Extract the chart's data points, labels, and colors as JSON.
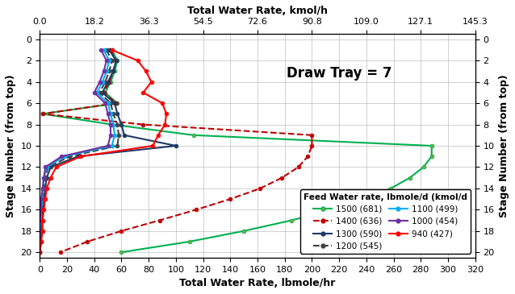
{
  "title_top": "Total Water Rate, kmol/h",
  "xlabel": "Total Water Rate, lbmole/hr",
  "ylabel_left": "Stage Number (from top)",
  "ylabel_right": "Stage Number (from top)",
  "annotation": "Draw Tray = 7",
  "xlim": [
    0,
    320
  ],
  "ylim": [
    20.5,
    -0.5
  ],
  "xticks_bottom": [
    0,
    20,
    40,
    60,
    80,
    100,
    120,
    140,
    160,
    180,
    200,
    220,
    240,
    260,
    280,
    300,
    320
  ],
  "xticks_top_values": [
    0.0,
    18.2,
    36.3,
    54.5,
    72.6,
    90.8,
    109.0,
    127.1,
    145.3
  ],
  "yticks": [
    0,
    2,
    4,
    6,
    8,
    10,
    12,
    14,
    16,
    18,
    20
  ],
  "series": [
    {
      "label": "1500 (681)",
      "color": "#00b050",
      "linestyle": "-",
      "linewidth": 1.5,
      "marker": "o",
      "markersize": 3.5,
      "markerfacecolor": "#70ad47",
      "stages": [
        1,
        2,
        3,
        4,
        5,
        6,
        7,
        8,
        9,
        10,
        11,
        12,
        13,
        14,
        15,
        16,
        17,
        18,
        19,
        20
      ],
      "water_rate": [
        53,
        57,
        55,
        52,
        48,
        57,
        2,
        53,
        113,
        288,
        288,
        282,
        272,
        258,
        240,
        215,
        185,
        150,
        110,
        60
      ]
    },
    {
      "label": "1400 (636)",
      "color": "#c00000",
      "linestyle": "--",
      "linewidth": 1.5,
      "marker": "o",
      "markersize": 3.5,
      "markerfacecolor": "#c00000",
      "stages": [
        1,
        2,
        3,
        4,
        5,
        6,
        7,
        8,
        9,
        10,
        11,
        12,
        13,
        14,
        15,
        16,
        17,
        18,
        19,
        20
      ],
      "water_rate": [
        52,
        56,
        54,
        51,
        47,
        56,
        2,
        76,
        200,
        200,
        197,
        190,
        178,
        162,
        140,
        115,
        88,
        60,
        35,
        15
      ]
    },
    {
      "label": "1300 (590)",
      "color": "#1f3864",
      "linestyle": "-",
      "linewidth": 1.5,
      "marker": "o",
      "markersize": 3.5,
      "markerfacecolor": "#1f3864",
      "stages": [
        1,
        2,
        3,
        4,
        5,
        6,
        7,
        8,
        9,
        10,
        11,
        12,
        13,
        14,
        15,
        16,
        17,
        18,
        19,
        20
      ],
      "water_rate": [
        51,
        56,
        54,
        50,
        46,
        55,
        57,
        60,
        62,
        100,
        28,
        8,
        5,
        4,
        3,
        2,
        2,
        1,
        1,
        0
      ]
    },
    {
      "label": "1200 (545)",
      "color": "#404040",
      "linestyle": "--",
      "linewidth": 1.5,
      "marker": "o",
      "markersize": 3.5,
      "markerfacecolor": "#404040",
      "stages": [
        1,
        2,
        3,
        4,
        5,
        6,
        7,
        8,
        9,
        10,
        11,
        12,
        13,
        14,
        15,
        16,
        17,
        18,
        19,
        20
      ],
      "water_rate": [
        49,
        53,
        51,
        48,
        44,
        52,
        54,
        57,
        58,
        57,
        22,
        6,
        4,
        3,
        2,
        2,
        1,
        1,
        0,
        0
      ]
    },
    {
      "label": "1100 (499)",
      "color": "#00b0f0",
      "linestyle": "-",
      "linewidth": 1.5,
      "marker": "o",
      "markersize": 3.5,
      "markerfacecolor": "#00b0f0",
      "stages": [
        1,
        2,
        3,
        4,
        5,
        6,
        7,
        8,
        9,
        10,
        11,
        12,
        13,
        14,
        15,
        16,
        17,
        18,
        19,
        20
      ],
      "water_rate": [
        47,
        51,
        49,
        46,
        42,
        50,
        52,
        54,
        55,
        53,
        18,
        5,
        3,
        2,
        2,
        1,
        1,
        0,
        0,
        0
      ]
    },
    {
      "label": "1000 (454)",
      "color": "#7030a0",
      "linestyle": "-",
      "linewidth": 1.5,
      "marker": "o",
      "markersize": 3.5,
      "markerfacecolor": "#7030a0",
      "stages": [
        1,
        2,
        3,
        4,
        5,
        6,
        7,
        8,
        9,
        10,
        11,
        12,
        13,
        14,
        15,
        16,
        17,
        18,
        19,
        20
      ],
      "water_rate": [
        45,
        49,
        47,
        44,
        40,
        48,
        50,
        52,
        52,
        50,
        16,
        4,
        3,
        2,
        1,
        1,
        0,
        0,
        0,
        0
      ]
    },
    {
      "label": "940 (427)",
      "color": "#ff0000",
      "linestyle": "-",
      "linewidth": 1.5,
      "marker": "o",
      "markersize": 3.5,
      "markerfacecolor": "#ff0000",
      "stages": [
        1,
        2,
        3,
        4,
        5,
        6,
        7,
        8,
        9,
        10,
        11,
        12,
        13,
        14,
        15,
        16,
        17,
        18,
        19,
        20
      ],
      "water_rate": [
        53,
        72,
        78,
        82,
        76,
        90,
        93,
        92,
        87,
        83,
        30,
        12,
        8,
        5,
        4,
        3,
        2,
        2,
        1,
        0
      ]
    }
  ],
  "background_color": "#ffffff",
  "grid_color": "#bfbfbf"
}
